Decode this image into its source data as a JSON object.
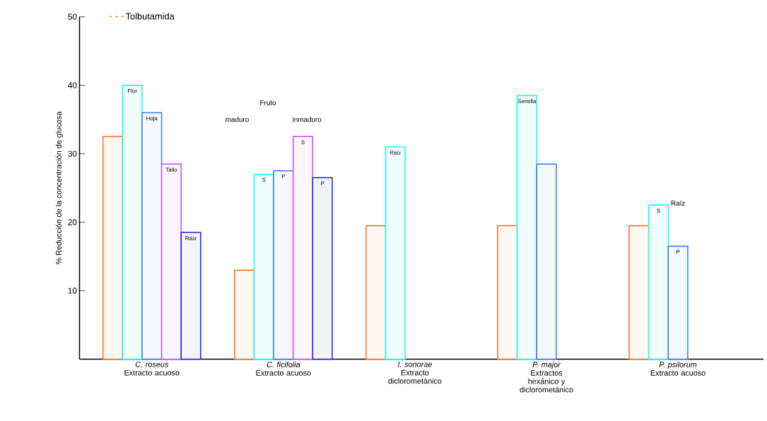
{
  "chart_data": {
    "type": "bar",
    "ylabel": "% Reducción de la concentración de glucosa",
    "categories": [
      "*C. roseus* Extracto acuoso",
      "*C. ficifolia* Extracto acuoso",
      "*I. sonorae* Extracto diclorometánico",
      "*P. major* Extractos hexánico y diclorometánico",
      "*P. psilorum* Extracto acuoso"
    ],
    "series": [
      {
        "name": "Tolbutamida",
        "color": "#ff6a13",
        "values": [
          32.5,
          13,
          19.5,
          19.5,
          19.5
        ]
      },
      {
        "color": "#00ffff",
        "values": [
          40,
          27,
          31,
          38.5,
          22.5
        ],
        "value_labels": [
          "Flor",
          "S",
          "Raíz",
          "Semilla",
          "S"
        ]
      },
      {
        "color": "#3377ff",
        "values": [
          36,
          27.5,
          null,
          28.5,
          16.5
        ],
        "value_labels": [
          "Hoja",
          "P",
          null,
          null,
          "P"
        ]
      },
      {
        "color": "#cc44ff",
        "values": [
          28.5,
          32.5,
          null,
          null,
          null
        ],
        "value_labels": [
          "Tallo",
          "S",
          null,
          null,
          null
        ]
      },
      {
        "color": "#1a1aff",
        "values": [
          18.5,
          26.5,
          null,
          null,
          null
        ],
        "value_labels": [
          "Raíz",
          "P",
          null,
          null,
          null
        ]
      }
    ],
    "annotations": [
      "Fruto",
      "maduro",
      "inmaduro",
      "Raíz"
    ],
    "ylim": [
      0,
      50
    ],
    "yticks": [
      10,
      20,
      30,
      40,
      50
    ],
    "legend": "top left"
  }
}
